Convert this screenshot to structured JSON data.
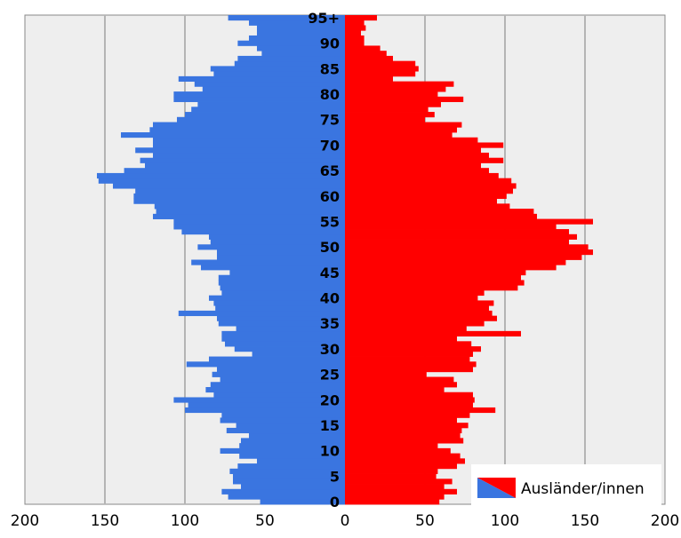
{
  "chart_data": {
    "type": "bar",
    "orientation": "horizontal",
    "layout": "population-pyramid",
    "title": "",
    "xlabel": "",
    "ylabel": "",
    "xlim": [
      -200,
      200
    ],
    "x_ticks": [
      -200,
      -150,
      -100,
      -50,
      0,
      50,
      100,
      150,
      200
    ],
    "x_tick_labels": [
      "200",
      "150",
      "100",
      "50",
      "0",
      "50",
      "100",
      "150",
      "200"
    ],
    "y_tick_labels": [
      {
        "age": 0,
        "label": "0"
      },
      {
        "age": 5,
        "label": "5"
      },
      {
        "age": 10,
        "label": "10"
      },
      {
        "age": 15,
        "label": "15"
      },
      {
        "age": 20,
        "label": "20"
      },
      {
        "age": 25,
        "label": "25"
      },
      {
        "age": 30,
        "label": "30"
      },
      {
        "age": 35,
        "label": "35"
      },
      {
        "age": 40,
        "label": "40"
      },
      {
        "age": 45,
        "label": "45"
      },
      {
        "age": 50,
        "label": "50"
      },
      {
        "age": 55,
        "label": "55"
      },
      {
        "age": 60,
        "label": "60"
      },
      {
        "age": 65,
        "label": "65"
      },
      {
        "age": 70,
        "label": "70"
      },
      {
        "age": 75,
        "label": "75"
      },
      {
        "age": 80,
        "label": "80"
      },
      {
        "age": 85,
        "label": "85"
      },
      {
        "age": 90,
        "label": "90"
      },
      {
        "age": 95,
        "label": "95+"
      }
    ],
    "grid": "vertical",
    "legend": {
      "position": "bottom-right",
      "label": "Ausländer/innen"
    },
    "colors": {
      "left": "#3a75e0",
      "right": "#ff0000",
      "plot_bg": "#eeeeee",
      "grid": "#b4b4b4"
    },
    "categories": [
      0,
      1,
      2,
      3,
      4,
      5,
      6,
      7,
      8,
      9,
      10,
      11,
      12,
      13,
      14,
      15,
      16,
      17,
      18,
      19,
      20,
      21,
      22,
      23,
      24,
      25,
      26,
      27,
      28,
      29,
      30,
      31,
      32,
      33,
      34,
      35,
      36,
      37,
      38,
      39,
      40,
      41,
      42,
      43,
      44,
      45,
      46,
      47,
      48,
      49,
      50,
      51,
      52,
      53,
      54,
      55,
      56,
      57,
      58,
      59,
      60,
      61,
      62,
      63,
      64,
      65,
      66,
      67,
      68,
      69,
      70,
      71,
      72,
      73,
      74,
      75,
      76,
      77,
      78,
      79,
      80,
      81,
      82,
      83,
      84,
      85,
      86,
      87,
      88,
      89,
      90,
      91,
      92,
      93,
      94,
      95
    ],
    "series": [
      {
        "side": "left",
        "values": [
          53,
          73,
          77,
          65,
          70,
          70,
          72,
          67,
          55,
          66,
          78,
          66,
          65,
          60,
          74,
          68,
          78,
          77,
          100,
          98,
          107,
          82,
          87,
          84,
          78,
          83,
          80,
          99,
          85,
          58,
          69,
          75,
          77,
          77,
          68,
          79,
          80,
          104,
          81,
          82,
          85,
          77,
          78,
          79,
          79,
          72,
          90,
          96,
          80,
          80,
          92,
          84,
          85,
          102,
          107,
          107,
          120,
          118,
          119,
          132,
          132,
          131,
          145,
          154,
          155,
          138,
          125,
          128,
          120,
          131,
          120,
          120,
          140,
          122,
          120,
          105,
          100,
          96,
          92,
          107,
          107,
          89,
          94,
          104,
          82,
          84,
          69,
          67,
          52,
          55,
          67,
          60,
          55,
          55,
          60,
          73
        ]
      }
    ]
  }
}
